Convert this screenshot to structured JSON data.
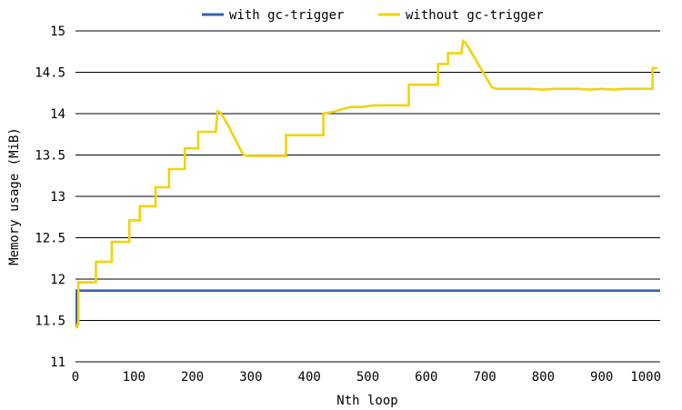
{
  "chart_data": {
    "type": "line",
    "title": "",
    "xlabel": "Nth loop",
    "ylabel": "Memory usage (MiB)",
    "xlim": [
      0,
      1000
    ],
    "ylim": [
      11,
      15
    ],
    "x_ticks": [
      0,
      100,
      200,
      300,
      400,
      500,
      600,
      700,
      800,
      900,
      1000
    ],
    "y_ticks": [
      11,
      11.5,
      12,
      12.5,
      13,
      13.5,
      14,
      14.5,
      15
    ],
    "grid": "horizontal",
    "legend_position": "top-center",
    "series": [
      {
        "name": "with gc-trigger",
        "color": "#3A62A8",
        "x": [
          0,
          2,
          2,
          1000
        ],
        "y": [
          11.43,
          11.43,
          11.86,
          11.86
        ]
      },
      {
        "name": "without gc-trigger",
        "color": "#F2D20C",
        "x": [
          0,
          3,
          3,
          5,
          5,
          35,
          35,
          62,
          62,
          92,
          92,
          110,
          110,
          137,
          137,
          160,
          160,
          187,
          187,
          210,
          210,
          240,
          243,
          248,
          252,
          256,
          260,
          264,
          268,
          272,
          276,
          280,
          284,
          288,
          296,
          310,
          360,
          360,
          424,
          424,
          440,
          455,
          470,
          490,
          510,
          540,
          570,
          570,
          620,
          620,
          637,
          637,
          660,
          663,
          668,
          673,
          678,
          683,
          688,
          693,
          698,
          703,
          708,
          712,
          720,
          740,
          760,
          780,
          800,
          820,
          840,
          860,
          880,
          900,
          920,
          940,
          960,
          987,
          987,
          995
        ],
        "y": [
          11.42,
          11.42,
          11.45,
          11.45,
          11.96,
          11.96,
          12.21,
          12.21,
          12.45,
          12.45,
          12.71,
          12.71,
          12.88,
          12.88,
          13.11,
          13.11,
          13.33,
          13.33,
          13.58,
          13.58,
          13.78,
          13.78,
          14.03,
          14.01,
          13.97,
          13.92,
          13.87,
          13.82,
          13.76,
          13.71,
          13.65,
          13.6,
          13.54,
          13.5,
          13.49,
          13.49,
          13.49,
          13.74,
          13.74,
          14.0,
          14.02,
          14.05,
          14.08,
          14.08,
          14.1,
          14.1,
          14.1,
          14.35,
          14.35,
          14.6,
          14.6,
          14.73,
          14.73,
          14.88,
          14.85,
          14.79,
          14.73,
          14.67,
          14.61,
          14.55,
          14.49,
          14.43,
          14.37,
          14.32,
          14.3,
          14.3,
          14.3,
          14.3,
          14.29,
          14.3,
          14.3,
          14.3,
          14.29,
          14.3,
          14.29,
          14.3,
          14.3,
          14.3,
          14.55,
          14.55
        ]
      }
    ]
  }
}
